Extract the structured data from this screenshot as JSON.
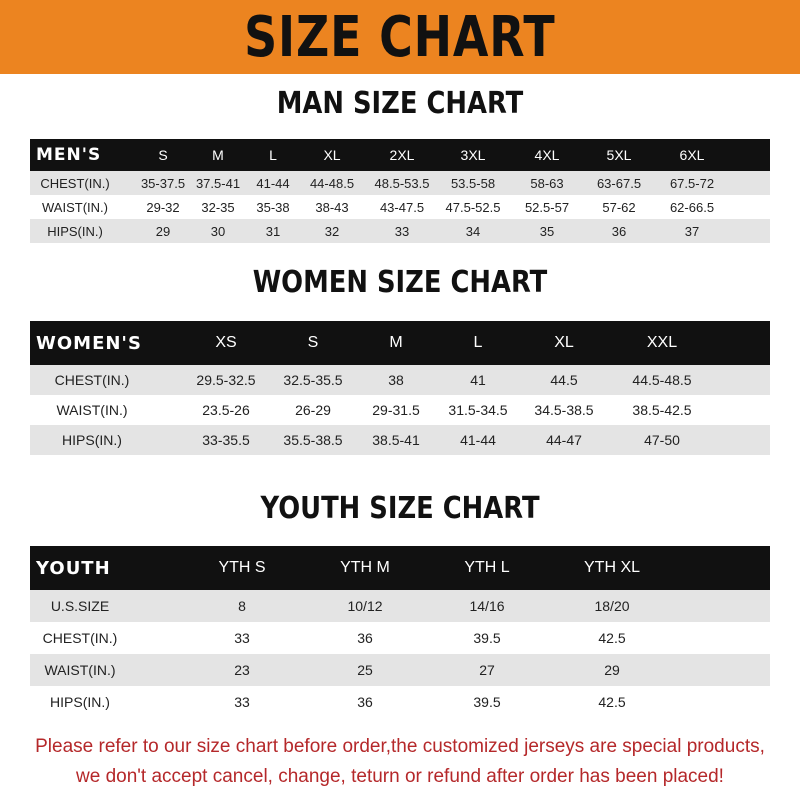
{
  "banner": {
    "title": "SIZE CHART",
    "color": "#ec8420"
  },
  "men": {
    "title": "MAN SIZE CHART",
    "header": [
      "MEN'S",
      "S",
      "M",
      "L",
      "XL",
      "2XL",
      "3XL",
      "4XL",
      "5XL",
      "6XL"
    ],
    "rows": [
      [
        "CHEST(IN.)",
        "35-37.5",
        "37.5-41",
        "41-44",
        "44-48.5",
        "48.5-53.5",
        "53.5-58",
        "58-63",
        "63-67.5",
        "67.5-72"
      ],
      [
        "WAIST(IN.)",
        "29-32",
        "32-35",
        "35-38",
        "38-43",
        "43-47.5",
        "47.5-52.5",
        "52.5-57",
        "57-62",
        "62-66.5"
      ],
      [
        "HIPS(IN.)",
        "29",
        "30",
        "31",
        "32",
        "33",
        "34",
        "35",
        "36",
        "37"
      ]
    ]
  },
  "women": {
    "title": "WOMEN SIZE CHART",
    "header": [
      "WOMEN'S",
      "XS",
      "S",
      "M",
      "L",
      "XL",
      "XXL"
    ],
    "rows": [
      [
        "CHEST(IN.)",
        "29.5-32.5",
        "32.5-35.5",
        "38",
        "41",
        "44.5",
        "44.5-48.5"
      ],
      [
        "WAIST(IN.)",
        "23.5-26",
        "26-29",
        "29-31.5",
        "31.5-34.5",
        "34.5-38.5",
        "38.5-42.5"
      ],
      [
        "HIPS(IN.)",
        "33-35.5",
        "35.5-38.5",
        "38.5-41",
        "41-44",
        "44-47",
        "47-50"
      ]
    ]
  },
  "youth": {
    "title": "YOUTH SIZE CHART",
    "header": [
      "YOUTH",
      "YTH S",
      "YTH M",
      "YTH L",
      "YTH XL"
    ],
    "rows": [
      [
        "U.S.SIZE",
        "8",
        "10/12",
        "14/16",
        "18/20"
      ],
      [
        "CHEST(IN.)",
        "33",
        "36",
        "39.5",
        "42.5"
      ],
      [
        "WAIST(IN.)",
        "23",
        "25",
        "27",
        "29"
      ],
      [
        "HIPS(IN.)",
        "33",
        "36",
        "39.5",
        "42.5"
      ]
    ]
  },
  "note": {
    "line1": "Please refer to our size chart before order,the customized jerseys are special products,",
    "line2": "we don't accept cancel, change, teturn or refund after order has been placed!",
    "color": "#b5282a"
  }
}
